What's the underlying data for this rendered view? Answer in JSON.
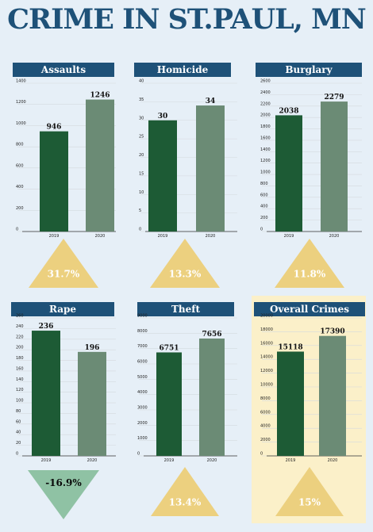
{
  "title": "CRIME IN ST.PAUL, MN",
  "colors": {
    "background": "#e6eff7",
    "header": "#1e5178",
    "bar_2019": "#1d5b35",
    "bar_2020": "#6b8b75",
    "triangle_up": "#ecd07f",
    "triangle_down": "#8fc2a4",
    "highlight": "#fbf0c9"
  },
  "chart_data": [
    {
      "type": "bar",
      "title": "Assaults",
      "categories": [
        "2019",
        "2020"
      ],
      "values": [
        946,
        1246
      ],
      "yticks": [
        0,
        200,
        400,
        600,
        800,
        1000,
        1200,
        1400
      ],
      "ylim": [
        0,
        1400
      ],
      "change_label": "31.7%",
      "change_direction": "up"
    },
    {
      "type": "bar",
      "title": "Homicide",
      "categories": [
        "2019",
        "2020"
      ],
      "values": [
        30,
        34
      ],
      "yticks": [
        0,
        5,
        10,
        15,
        20,
        25,
        30,
        35,
        40
      ],
      "ylim": [
        0,
        40
      ],
      "change_label": "13.3%",
      "change_direction": "up"
    },
    {
      "type": "bar",
      "title": "Burglary",
      "categories": [
        "2019",
        "2020"
      ],
      "values": [
        2038,
        2279
      ],
      "yticks": [
        0,
        200,
        400,
        600,
        800,
        1000,
        1200,
        1400,
        1600,
        1800,
        2000,
        2200,
        2400,
        2600
      ],
      "ylim": [
        0,
        2600
      ],
      "change_label": "11.8%",
      "change_direction": "up"
    },
    {
      "type": "bar",
      "title": "Rape",
      "categories": [
        "2019",
        "2020"
      ],
      "values": [
        236,
        196
      ],
      "yticks": [
        0,
        20,
        40,
        60,
        80,
        100,
        120,
        140,
        160,
        180,
        200,
        220,
        240,
        260
      ],
      "ylim": [
        0,
        260
      ],
      "change_label": "-16.9%",
      "change_direction": "down"
    },
    {
      "type": "bar",
      "title": "Theft",
      "categories": [
        "2019",
        "2020"
      ],
      "values": [
        6751,
        7656
      ],
      "yticks": [
        0,
        1000,
        2000,
        3000,
        4000,
        5000,
        6000,
        7000,
        8000,
        9000
      ],
      "ylim": [
        0,
        9000
      ],
      "change_label": "13.4%",
      "change_direction": "up"
    },
    {
      "type": "bar",
      "title": "Overall Crimes",
      "categories": [
        "2019",
        "2020"
      ],
      "values": [
        15118,
        17390
      ],
      "yticks": [
        0,
        2000,
        4000,
        6000,
        8000,
        10000,
        12000,
        14000,
        16000,
        18000,
        20000
      ],
      "ylim": [
        0,
        20000
      ],
      "change_label": "15%",
      "change_direction": "up"
    }
  ]
}
